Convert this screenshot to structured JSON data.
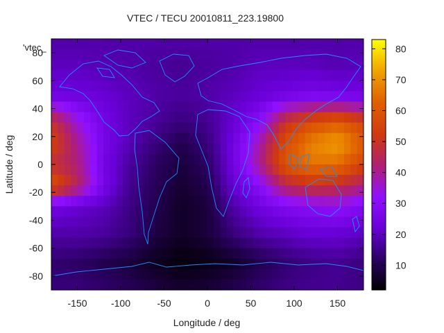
{
  "chart_data": {
    "type": "heatmap",
    "title": "VTEC / TECU 20010811_223.19800",
    "xlabel": "Longitude / deg",
    "ylabel": "Latitude / deg",
    "key_label": "'vtec_",
    "xlim": [
      -180,
      180
    ],
    "ylim": [
      -90,
      90
    ],
    "xticks": [
      -150,
      -100,
      -50,
      0,
      50,
      100,
      150
    ],
    "yticks": [
      -80,
      -60,
      -40,
      -20,
      0,
      20,
      40,
      60,
      80
    ],
    "colorbar": {
      "range": [
        2,
        83
      ],
      "ticks": [
        10,
        20,
        30,
        40,
        50,
        60,
        70,
        80
      ]
    },
    "lon_grid": [
      -180,
      -150,
      -120,
      -90,
      -60,
      -30,
      0,
      30,
      60,
      90,
      120,
      150,
      180
    ],
    "lat_grid": [
      90,
      70,
      50,
      30,
      15,
      0,
      -15,
      -30,
      -50,
      -70,
      -90
    ],
    "values": [
      [
        18,
        18,
        18,
        18,
        18,
        18,
        18,
        18,
        18,
        18,
        18,
        18,
        18
      ],
      [
        20,
        20,
        19,
        18,
        17,
        16,
        17,
        18,
        20,
        20,
        20,
        19,
        20
      ],
      [
        24,
        23,
        22,
        20,
        18,
        17,
        18,
        20,
        22,
        24,
        26,
        25,
        24
      ],
      [
        50,
        35,
        25,
        20,
        17,
        14,
        16,
        22,
        30,
        50,
        58,
        62,
        55
      ],
      [
        55,
        40,
        26,
        19,
        14,
        10,
        14,
        24,
        38,
        58,
        68,
        72,
        62
      ],
      [
        48,
        42,
        25,
        17,
        12,
        8,
        12,
        24,
        40,
        60,
        66,
        65,
        55
      ],
      [
        60,
        45,
        26,
        16,
        11,
        7,
        10,
        22,
        30,
        45,
        50,
        48,
        42
      ],
      [
        25,
        22,
        20,
        15,
        10,
        6,
        8,
        18,
        24,
        28,
        30,
        32,
        28
      ],
      [
        18,
        18,
        17,
        14,
        9,
        6,
        8,
        14,
        18,
        20,
        22,
        22,
        20
      ],
      [
        13,
        12,
        10,
        8,
        5,
        3,
        4,
        6,
        10,
        13,
        15,
        16,
        14
      ],
      [
        14,
        14,
        13,
        11,
        9,
        7,
        8,
        10,
        13,
        15,
        16,
        16,
        15
      ]
    ]
  }
}
